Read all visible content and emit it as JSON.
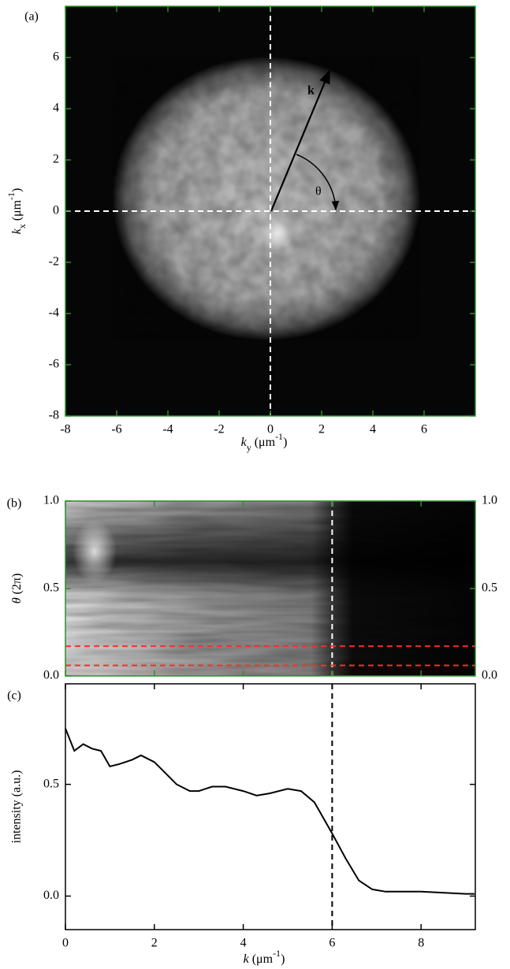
{
  "chart_data": [
    {
      "type": "image",
      "panel_label": "(a)",
      "xlabel": {
        "italic": "k",
        "sub": "y",
        "text": "(μm",
        "sup": "-1",
        "end": ")"
      },
      "ylabel": {
        "italic": "k",
        "sub": "x",
        "text": "(μm",
        "sup": "-1",
        "end": ")"
      },
      "xlim": [
        -8,
        8
      ],
      "ylim": [
        -8,
        8
      ],
      "xticks": [
        -8,
        -6,
        -4,
        -2,
        0,
        2,
        4,
        6
      ],
      "yticks": [
        -8,
        -6,
        -4,
        -2,
        0,
        2,
        4,
        6
      ],
      "vlines": [
        0
      ],
      "hlines": [
        0
      ],
      "line_color": "#ffffff",
      "frame_color": "#2e8b2e",
      "annotations": {
        "vector": "k",
        "angle": "θ"
      }
    },
    {
      "type": "image",
      "panel_label": "(b)",
      "ylabel": {
        "italic": "θ",
        "text": "(2π)"
      },
      "xlim": [
        0,
        9.22
      ],
      "ylim": [
        0,
        1
      ],
      "y2lim": [
        0,
        1
      ],
      "xticks": [
        0,
        2,
        4,
        6,
        8
      ],
      "yticks": [
        {
          "value": 0,
          "label": "0.0"
        },
        {
          "value": 0.5,
          "label": "0.5"
        },
        {
          "value": 1,
          "label": "1.0"
        }
      ],
      "y2ticks": [
        {
          "value": 0,
          "label": "0.0"
        },
        {
          "value": 0.5,
          "label": "0.5"
        },
        {
          "value": 1,
          "label": "1.0"
        }
      ],
      "vlines": [
        6
      ],
      "line_color": "#ffffff",
      "hlines": [
        0.17,
        0.06
      ],
      "hline_color": "#ff2a2a",
      "frame_color": "#2e8b2e"
    },
    {
      "type": "line",
      "panel_label": "(c)",
      "xlabel": {
        "italic": "k",
        "text": "(μm",
        "sup": "-1",
        "end": ")"
      },
      "ylabel": "intensity (a.u.)",
      "xlim": [
        0,
        9.22
      ],
      "ylim": [
        -0.15,
        0.95
      ],
      "xticks": [
        0,
        2,
        4,
        6,
        8
      ],
      "yticks": [
        {
          "value": 0,
          "label": "0.0"
        },
        {
          "value": 0.5,
          "label": "0.5"
        }
      ],
      "x": [
        0,
        0.2,
        0.4,
        0.6,
        0.8,
        1.0,
        1.2,
        1.5,
        1.7,
        2.0,
        2.2,
        2.5,
        2.8,
        3.0,
        3.3,
        3.6,
        4.0,
        4.3,
        4.6,
        5.0,
        5.3,
        5.6,
        6.0,
        6.3,
        6.6,
        6.9,
        7.2,
        8.0,
        9.0,
        9.2
      ],
      "values": [
        0.75,
        0.65,
        0.68,
        0.66,
        0.65,
        0.58,
        0.59,
        0.61,
        0.63,
        0.6,
        0.56,
        0.5,
        0.47,
        0.47,
        0.49,
        0.49,
        0.47,
        0.45,
        0.46,
        0.48,
        0.47,
        0.42,
        0.28,
        0.17,
        0.07,
        0.03,
        0.02,
        0.02,
        0.01,
        0.01
      ],
      "color": "#000000",
      "vlines": [
        6
      ],
      "line_color": "#000000",
      "frame_color": "#000000"
    }
  ]
}
